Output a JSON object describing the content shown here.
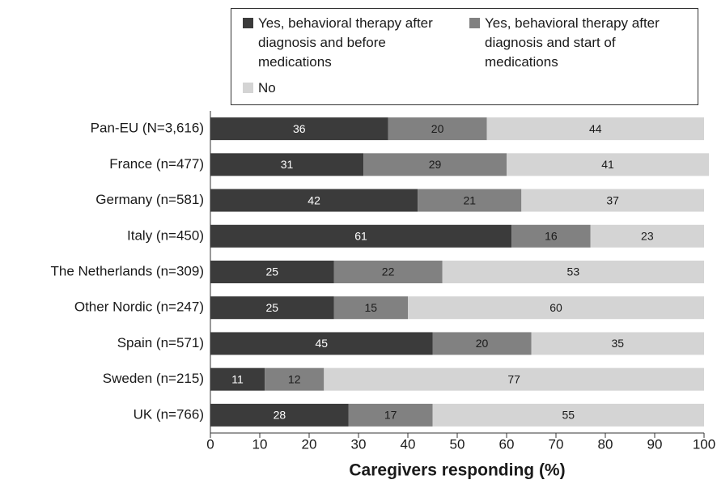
{
  "chart_data": {
    "type": "stacked-barh",
    "x_label": "Caregivers responding (%)",
    "categories": [
      "Pan-EU (N=3,616)",
      "France (n=477)",
      "Germany (n=581)",
      "Italy (n=450)",
      "The Netherlands (n=309)",
      "Other Nordic (n=247)",
      "Spain (n=571)",
      "Sweden (n=215)",
      "UK (n=766)"
    ],
    "series": [
      {
        "name": "Yes, behavioral therapy after diagnosis and before medications",
        "color": "#3b3b3b",
        "values": [
          36,
          31,
          42,
          61,
          25,
          25,
          45,
          11,
          28
        ]
      },
      {
        "name": "Yes, behavioral therapy after diagnosis and start of medications",
        "color": "#818181",
        "values": [
          20,
          29,
          21,
          16,
          22,
          15,
          20,
          12,
          17
        ]
      },
      {
        "name": "No",
        "color": "#d4d4d4",
        "values": [
          44,
          41,
          37,
          23,
          53,
          60,
          35,
          77,
          55
        ]
      }
    ],
    "xlim": [
      0,
      100
    ],
    "xticks": [
      0,
      10,
      20,
      30,
      40,
      50,
      60,
      70,
      80,
      90,
      100
    ]
  }
}
